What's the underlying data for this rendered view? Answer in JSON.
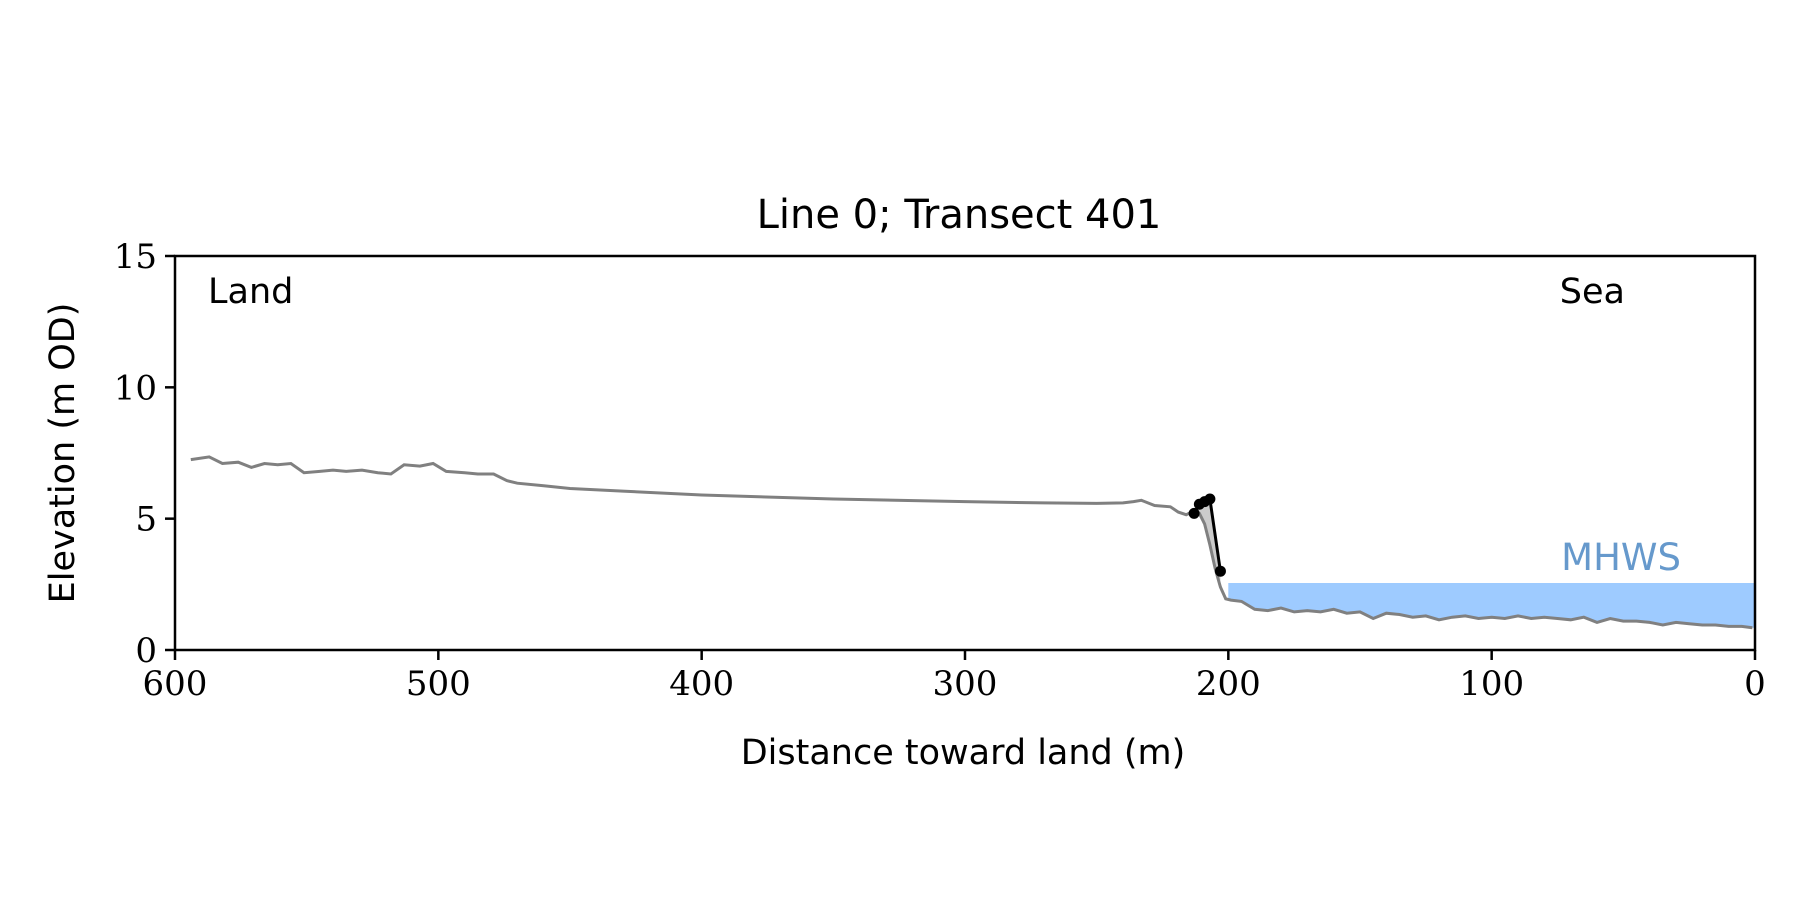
{
  "chart_data": {
    "type": "line",
    "title": "Line 0; Transect 401",
    "xlabel": "Distance toward land (m)",
    "ylabel": "Elevation (m OD)",
    "xlim": [
      600,
      0
    ],
    "ylim": [
      0,
      15
    ],
    "x_ticks": [
      600,
      500,
      400,
      300,
      200,
      100,
      0
    ],
    "y_ticks": [
      0,
      5,
      10,
      15
    ],
    "grid": false,
    "annotations": {
      "land_label": "Land",
      "sea_label": "Sea",
      "mhws_label": "MHWS"
    },
    "mhws": {
      "elevation": 2.55,
      "x_start": 200,
      "x_end": 0
    },
    "colors": {
      "profile": "#808080",
      "cliff": "#000000",
      "water": "#9ecbff",
      "mhws_text": "#6699cc",
      "cliff_fill": "#cccccc"
    },
    "series": [
      {
        "x": [
          594,
          587,
          582,
          576,
          571,
          566,
          561,
          556,
          551,
          545,
          540,
          535,
          529,
          523,
          518,
          513,
          507,
          502,
          497,
          490,
          485,
          479,
          474,
          470,
          460,
          450,
          430,
          400,
          350,
          300,
          270,
          250,
          240,
          236,
          233,
          228,
          222,
          219,
          216,
          213,
          211,
          209,
          207,
          205,
          203,
          201,
          199,
          195,
          190,
          185,
          180,
          175,
          170,
          165,
          160,
          155,
          150,
          145,
          140,
          135,
          130,
          125,
          120,
          115,
          110,
          105,
          100,
          95,
          90,
          85,
          80,
          75,
          70,
          65,
          60,
          55,
          50,
          45,
          40,
          35,
          30,
          25,
          20,
          15,
          10,
          5,
          1
        ],
        "y": [
          7.25,
          7.35,
          7.1,
          7.15,
          6.95,
          7.1,
          7.05,
          7.1,
          6.75,
          6.8,
          6.85,
          6.8,
          6.85,
          6.75,
          6.7,
          7.05,
          7.0,
          7.1,
          6.8,
          6.75,
          6.7,
          6.7,
          6.45,
          6.35,
          6.25,
          6.15,
          6.05,
          5.9,
          5.75,
          5.65,
          5.6,
          5.58,
          5.6,
          5.65,
          5.7,
          5.5,
          5.45,
          5.25,
          5.15,
          5.3,
          5.2,
          4.8,
          4.0,
          3.1,
          2.4,
          1.95,
          1.9,
          1.85,
          1.55,
          1.5,
          1.6,
          1.45,
          1.5,
          1.45,
          1.55,
          1.4,
          1.45,
          1.2,
          1.4,
          1.35,
          1.25,
          1.3,
          1.15,
          1.25,
          1.3,
          1.2,
          1.25,
          1.2,
          1.3,
          1.2,
          1.25,
          1.2,
          1.15,
          1.25,
          1.05,
          1.2,
          1.1,
          1.1,
          1.05,
          0.95,
          1.05,
          1.0,
          0.95,
          0.95,
          0.9,
          0.9,
          0.85
        ]
      },
      {
        "x": [
          213,
          211,
          209,
          207,
          203
        ],
        "y": [
          5.2,
          5.55,
          5.65,
          5.75,
          3.0
        ]
      }
    ]
  }
}
